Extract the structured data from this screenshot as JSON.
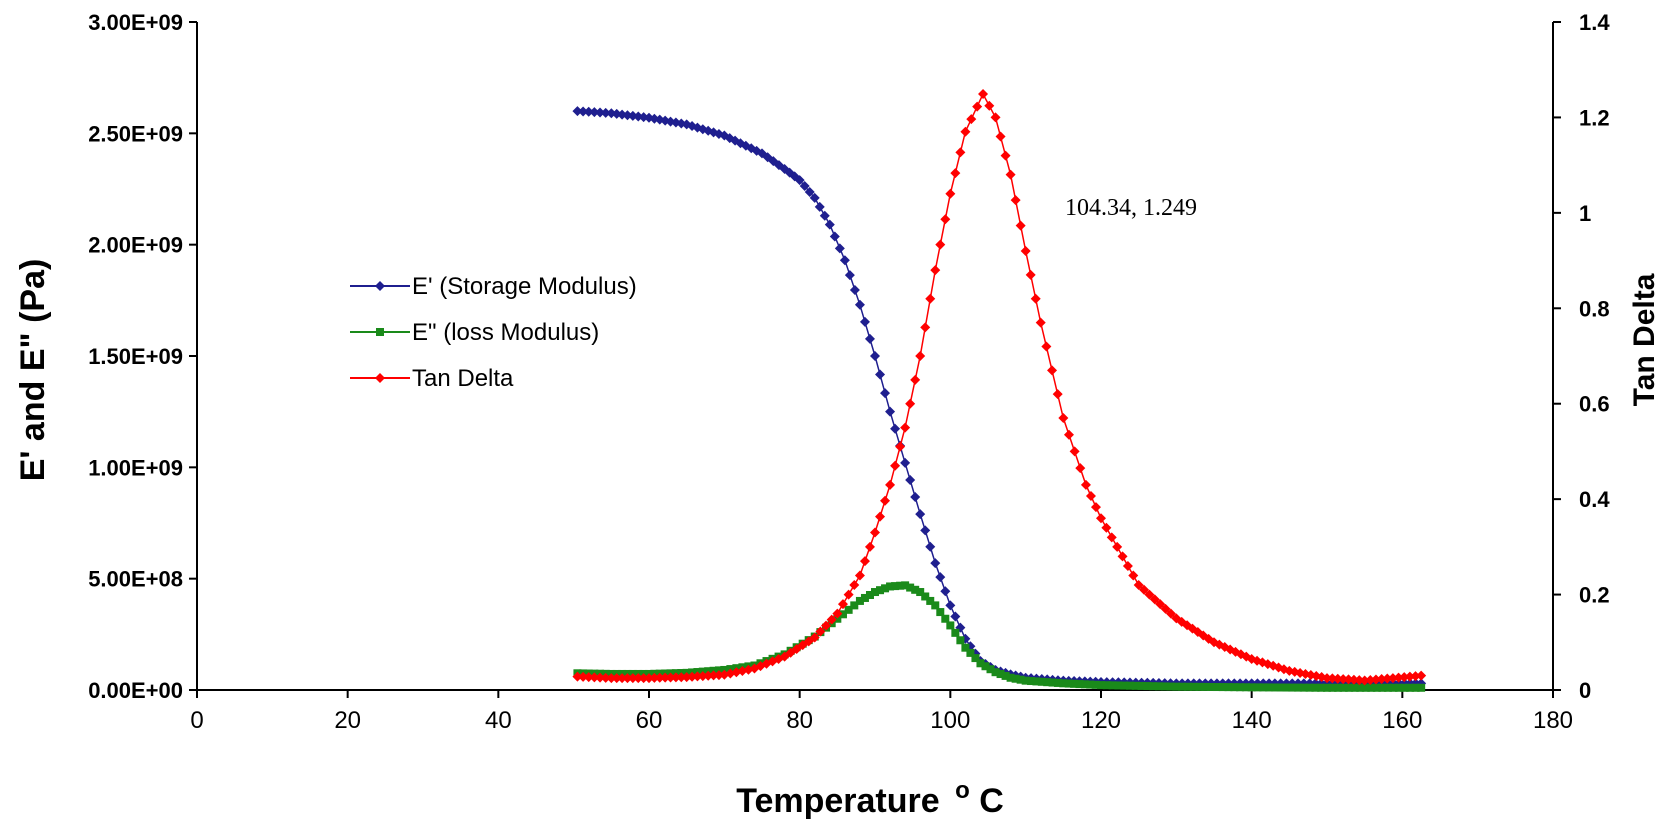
{
  "chart_data": {
    "type": "line",
    "xlabel": "Temperature",
    "xlabel_unit": "C",
    "xlabel_degree": "o",
    "ylabel_left": "E' and E\" (Pa)",
    "ylabel_right": "Tan Delta",
    "xlim": [
      0,
      180
    ],
    "x_ticks": [
      "0",
      "20",
      "40",
      "60",
      "80",
      "100",
      "120",
      "140",
      "160",
      "180"
    ],
    "ylim_left": [
      0,
      3000000000
    ],
    "y_left_ticks": [
      "0.00E+00",
      "5.00E+08",
      "1.00E+09",
      "1.50E+09",
      "2.00E+09",
      "2.50E+09",
      "3.00E+09"
    ],
    "ylim_right": [
      0,
      1.4
    ],
    "y_right_ticks": [
      "0",
      "0.2",
      "0.4",
      "0.6",
      "0.8",
      "1",
      "1.2",
      "1.4"
    ],
    "grid": false,
    "legend_position": "left-middle",
    "annotation": "104.34, 1.249",
    "series": [
      {
        "name": "E' (Storage Modulus)",
        "axis": "left",
        "color": "#1f1f8f",
        "marker": "diamond",
        "points": [
          [
            50.5,
            2600000000
          ],
          [
            55,
            2590000000
          ],
          [
            60,
            2570000000
          ],
          [
            65,
            2540000000
          ],
          [
            70,
            2490000000
          ],
          [
            75,
            2410000000
          ],
          [
            78,
            2340000000
          ],
          [
            80,
            2290000000
          ],
          [
            82,
            2210000000
          ],
          [
            84,
            2090000000
          ],
          [
            86,
            1930000000
          ],
          [
            88,
            1730000000
          ],
          [
            90,
            1500000000
          ],
          [
            92,
            1250000000
          ],
          [
            94,
            1020000000
          ],
          [
            96,
            790000000
          ],
          [
            98,
            570000000
          ],
          [
            100,
            380000000
          ],
          [
            102,
            230000000
          ],
          [
            104,
            130000000
          ],
          [
            106,
            90000000
          ],
          [
            108,
            70000000
          ],
          [
            110,
            55000000
          ],
          [
            115,
            42000000
          ],
          [
            120,
            36000000
          ],
          [
            130,
            30000000
          ],
          [
            140,
            30000000
          ],
          [
            150,
            30000000
          ],
          [
            162.5,
            30000000
          ]
        ]
      },
      {
        "name": "E\" (loss Modulus)",
        "axis": "left",
        "color": "#1a8a1a",
        "marker": "square",
        "points": [
          [
            50.5,
            75000000
          ],
          [
            55,
            72000000
          ],
          [
            60,
            72000000
          ],
          [
            65,
            77000000
          ],
          [
            70,
            90000000
          ],
          [
            74,
            110000000
          ],
          [
            78,
            160000000
          ],
          [
            82,
            240000000
          ],
          [
            85,
            320000000
          ],
          [
            88,
            400000000
          ],
          [
            90,
            440000000
          ],
          [
            92,
            465000000
          ],
          [
            94,
            470000000
          ],
          [
            96,
            440000000
          ],
          [
            98,
            380000000
          ],
          [
            100,
            290000000
          ],
          [
            102,
            190000000
          ],
          [
            104,
            120000000
          ],
          [
            106,
            80000000
          ],
          [
            108,
            55000000
          ],
          [
            110,
            42000000
          ],
          [
            115,
            30000000
          ],
          [
            120,
            22000000
          ],
          [
            130,
            15000000
          ],
          [
            140,
            12000000
          ],
          [
            150,
            10000000
          ],
          [
            162.5,
            10000000
          ]
        ]
      },
      {
        "name": "Tan Delta",
        "axis": "right",
        "color": "#ff0000",
        "marker": "diamond",
        "points": [
          [
            50.5,
            0.028
          ],
          [
            55,
            0.025
          ],
          [
            60,
            0.025
          ],
          [
            65,
            0.027
          ],
          [
            70,
            0.032
          ],
          [
            74,
            0.045
          ],
          [
            78,
            0.07
          ],
          [
            82,
            0.11
          ],
          [
            85,
            0.16
          ],
          [
            88,
            0.24
          ],
          [
            90,
            0.33
          ],
          [
            92,
            0.43
          ],
          [
            94,
            0.55
          ],
          [
            96,
            0.7
          ],
          [
            98,
            0.88
          ],
          [
            100,
            1.04
          ],
          [
            102,
            1.17
          ],
          [
            104.34,
            1.249
          ],
          [
            106,
            1.2
          ],
          [
            108,
            1.08
          ],
          [
            110,
            0.92
          ],
          [
            112,
            0.77
          ],
          [
            115,
            0.57
          ],
          [
            118,
            0.43
          ],
          [
            120,
            0.36
          ],
          [
            125,
            0.22
          ],
          [
            130,
            0.15
          ],
          [
            135,
            0.1
          ],
          [
            140,
            0.065
          ],
          [
            145,
            0.04
          ],
          [
            150,
            0.025
          ],
          [
            155,
            0.02
          ],
          [
            162.5,
            0.03
          ]
        ]
      }
    ]
  }
}
